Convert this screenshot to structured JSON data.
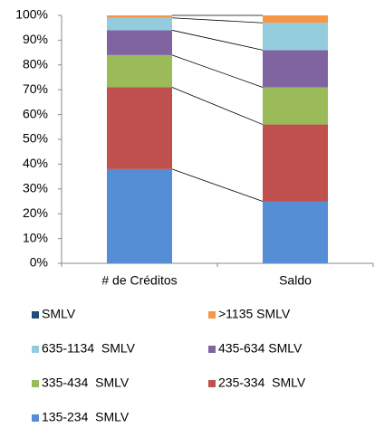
{
  "chart_data": {
    "type": "stacked_bar_100",
    "categories": [
      "# de Créditos",
      "Saldo"
    ],
    "series": [
      {
        "name": "SMLV",
        "color": "#1f4e79",
        "values": [
          0,
          0
        ]
      },
      {
        "name": ">1135 SMLV",
        "color": "#f79646",
        "values": [
          1,
          3
        ]
      },
      {
        "name": "635-1134  SMLV",
        "color": "#93cddd",
        "values": [
          5,
          11
        ]
      },
      {
        "name": "435-634 SMLV",
        "color": "#8064a2",
        "values": [
          10,
          15
        ]
      },
      {
        "name": "335-434  SMLV",
        "color": "#9bbb59",
        "values": [
          13,
          15
        ]
      },
      {
        "name": "235-334  SMLV",
        "color": "#c0504d",
        "values": [
          33,
          31
        ]
      },
      {
        "name": "135-234  SMLV",
        "color": "#558ed5",
        "values": [
          38,
          25
        ]
      }
    ],
    "ylim": [
      0,
      100
    ],
    "yticks": [
      {
        "value": 0,
        "label": "0%"
      },
      {
        "value": 10,
        "label": "10%"
      },
      {
        "value": 20,
        "label": "20%"
      },
      {
        "value": 30,
        "label": "30%"
      },
      {
        "value": 40,
        "label": "40%"
      },
      {
        "value": 50,
        "label": "50%"
      },
      {
        "value": 60,
        "label": "60%"
      },
      {
        "value": 70,
        "label": "70%"
      },
      {
        "value": 80,
        "label": "80%"
      },
      {
        "value": 90,
        "label": "90%"
      },
      {
        "value": 100,
        "label": "100%"
      }
    ],
    "legend": "bottom"
  }
}
